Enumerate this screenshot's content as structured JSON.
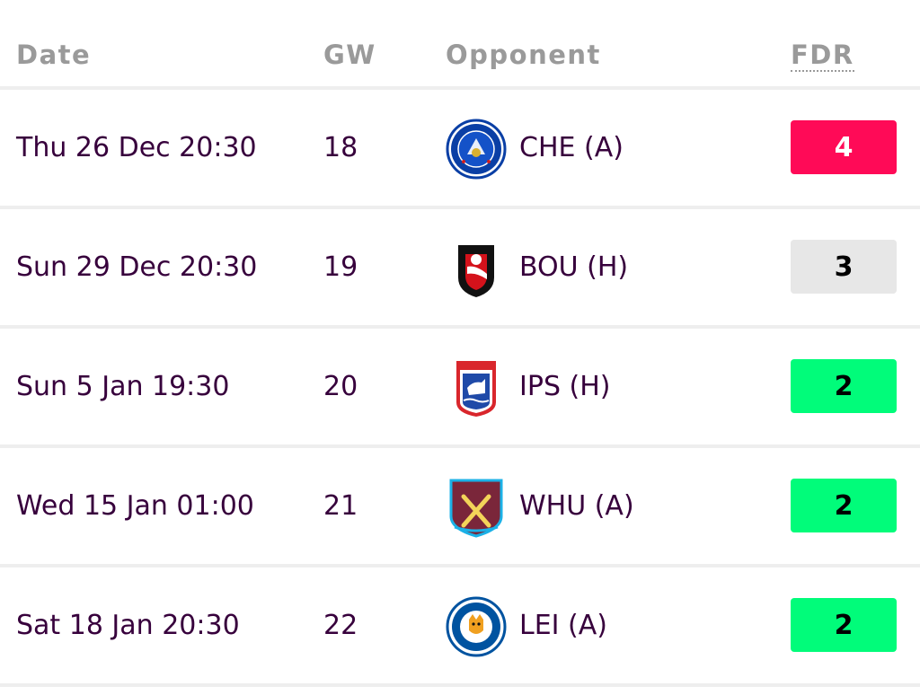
{
  "headers": {
    "date": "Date",
    "gw": "GW",
    "opponent": "Opponent",
    "fdr": "FDR"
  },
  "fixtures": [
    {
      "date": "Thu 26 Dec 20:30",
      "gw": "18",
      "opponent": "CHE (A)",
      "fdr": "4",
      "fdr_bg": "#ff0a57",
      "fdr_color": "#ffffff",
      "badge_icon": "chelsea-crest-icon"
    },
    {
      "date": "Sun 29 Dec 20:30",
      "gw": "19",
      "opponent": "BOU (H)",
      "fdr": "3",
      "fdr_bg": "#e7e7e7",
      "fdr_color": "#000000",
      "badge_icon": "bournemouth-crest-icon"
    },
    {
      "date": "Sun 5 Jan 19:30",
      "gw": "20",
      "opponent": "IPS (H)",
      "fdr": "2",
      "fdr_bg": "#01fc7a",
      "fdr_color": "#000000",
      "badge_icon": "ipswich-crest-icon"
    },
    {
      "date": "Wed 15 Jan 01:00",
      "gw": "21",
      "opponent": "WHU (A)",
      "fdr": "2",
      "fdr_bg": "#01fc7a",
      "fdr_color": "#000000",
      "badge_icon": "westham-crest-icon"
    },
    {
      "date": "Sat 18 Jan 20:30",
      "gw": "22",
      "opponent": "LEI (A)",
      "fdr": "2",
      "fdr_bg": "#01fc7a",
      "fdr_color": "#000000",
      "badge_icon": "leicester-crest-icon"
    }
  ]
}
